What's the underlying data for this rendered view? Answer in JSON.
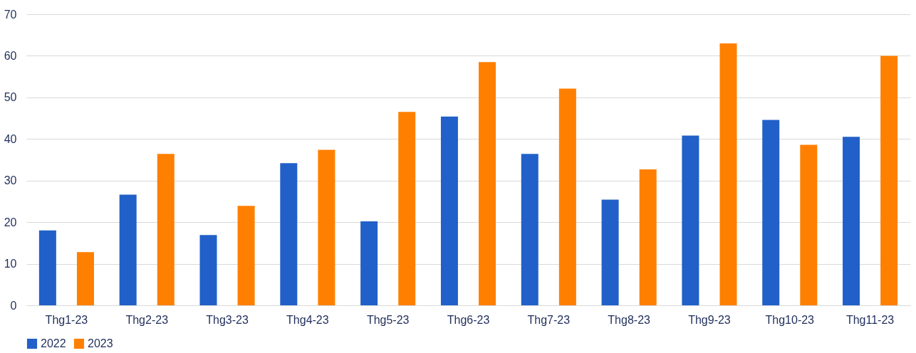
{
  "chart_data": {
    "type": "bar",
    "categories": [
      "Thg1-23",
      "Thg2-23",
      "Thg3-23",
      "Thg4-23",
      "Thg5-23",
      "Thg6-23",
      "Thg7-23",
      "Thg8-23",
      "Thg9-23",
      "Thg10-23",
      "Thg11-23"
    ],
    "series": [
      {
        "name": "2022",
        "color": "#2160c8",
        "values": [
          18,
          26.6,
          16.9,
          34.2,
          20.2,
          45.4,
          36.4,
          25.4,
          40.8,
          44.6,
          40.5
        ]
      },
      {
        "name": "2023",
        "color": "#ff7f00",
        "values": [
          12.8,
          36.4,
          23.9,
          37.4,
          46.5,
          58.5,
          52.1,
          32.7,
          63.0,
          38.6,
          60.0
        ]
      }
    ],
    "ylim": [
      0,
      70
    ],
    "yticks": [
      0,
      10,
      20,
      30,
      40,
      50,
      60,
      70
    ],
    "grid": "y",
    "legend": "bottom"
  }
}
